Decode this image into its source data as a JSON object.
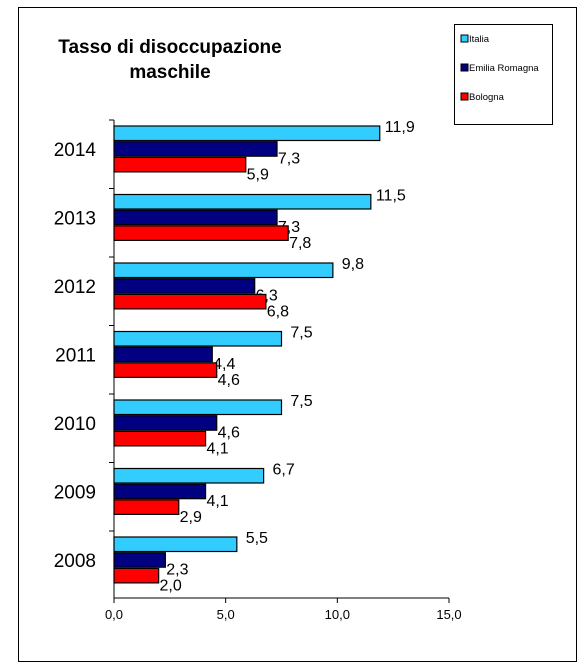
{
  "chart_data": {
    "type": "bar",
    "orientation": "horizontal",
    "title_lines": [
      "Tasso di disoccupazione",
      "maschile"
    ],
    "categories": [
      "2014",
      "2013",
      "2012",
      "2011",
      "2010",
      "2009",
      "2008"
    ],
    "series": [
      {
        "name": "Italia",
        "color": "#33ccff",
        "values": [
          11.9,
          11.5,
          9.8,
          7.5,
          7.5,
          6.7,
          5.5
        ],
        "labels": [
          "11,9",
          "11,5",
          "9,8",
          "7,5",
          "7,5",
          "6,7",
          "5,5"
        ]
      },
      {
        "name": "Emilia Romagna",
        "color": "#000080",
        "values": [
          7.3,
          7.3,
          6.3,
          4.4,
          4.6,
          4.1,
          2.3
        ],
        "labels": [
          "7,3",
          "7,3",
          "6,3",
          "4,4",
          "4,6",
          "4,1",
          "2,3"
        ]
      },
      {
        "name": "Bologna",
        "color": "#ff0000",
        "values": [
          5.9,
          7.8,
          6.8,
          4.6,
          4.1,
          2.9,
          2.0
        ],
        "labels": [
          "5,9",
          "7,8",
          "6,8",
          "4,6",
          "4,1",
          "2,9",
          "2,0"
        ]
      }
    ],
    "xlim": [
      0,
      15
    ],
    "xticks": [
      0,
      5,
      10,
      15
    ],
    "xtick_labels": [
      "0,0",
      "5,0",
      "10,0",
      "15,0"
    ],
    "grid": false,
    "legend_position": "top-right"
  }
}
